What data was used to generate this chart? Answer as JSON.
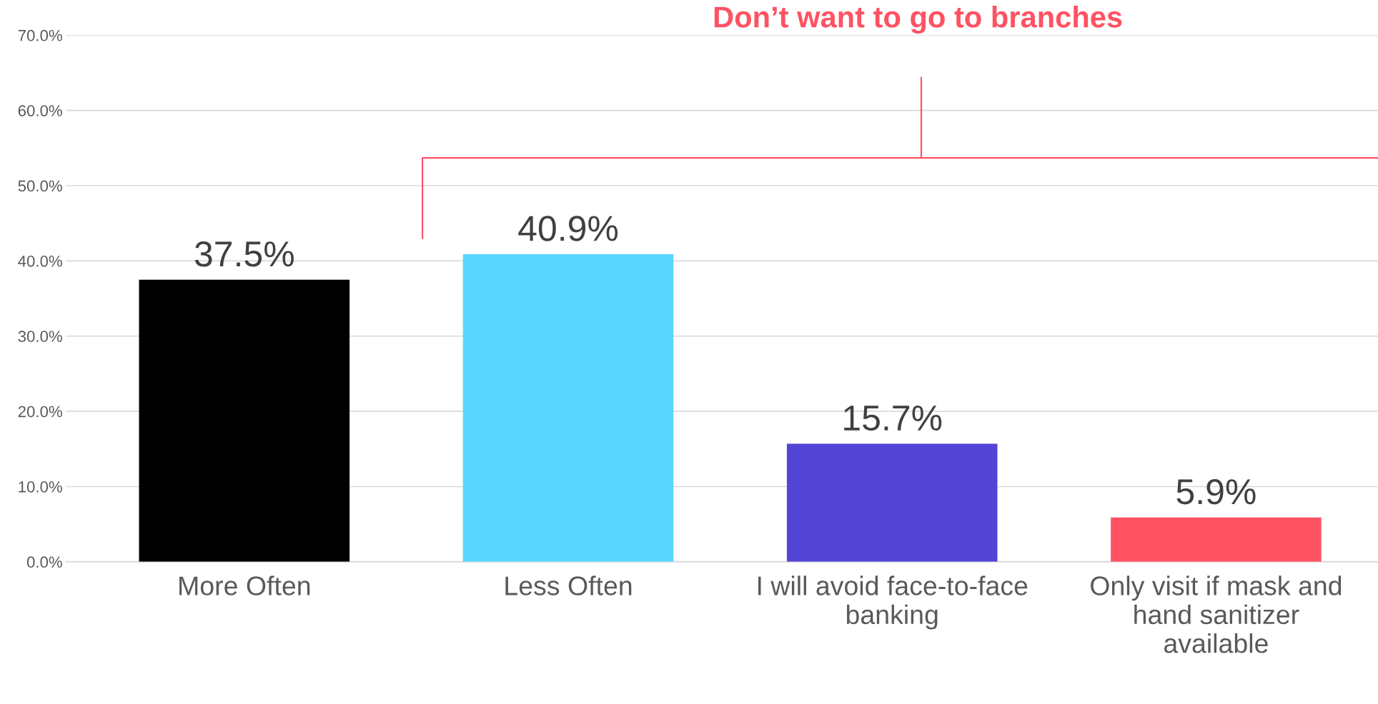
{
  "chart_data": {
    "type": "bar",
    "categories": [
      "More Often",
      "Less Often",
      "I will avoid face-to-face\nbanking",
      "Only visit if mask and\nhand sanitizer\navailable"
    ],
    "values": [
      37.5,
      40.9,
      15.7,
      5.9
    ],
    "colors": [
      "#000000",
      "#59d5fd",
      "#5344d6",
      "#fe5263"
    ],
    "value_labels": [
      "37.5%",
      "40.9%",
      "15.7%",
      "5.9%"
    ],
    "ylim": [
      0,
      70
    ],
    "yticks": [
      {
        "value": 0,
        "label": "0.0%"
      },
      {
        "value": 10,
        "label": "10.0%"
      },
      {
        "value": 20,
        "label": "20.0%"
      },
      {
        "value": 30,
        "label": "30.0%"
      },
      {
        "value": 40,
        "label": "40.0%"
      },
      {
        "value": 50,
        "label": "50.0%"
      },
      {
        "value": 60,
        "label": "60.0%"
      },
      {
        "value": 70,
        "label": "70.0%"
      }
    ],
    "grid": "y",
    "annotations": [
      "Don’t want to go to branches"
    ]
  }
}
